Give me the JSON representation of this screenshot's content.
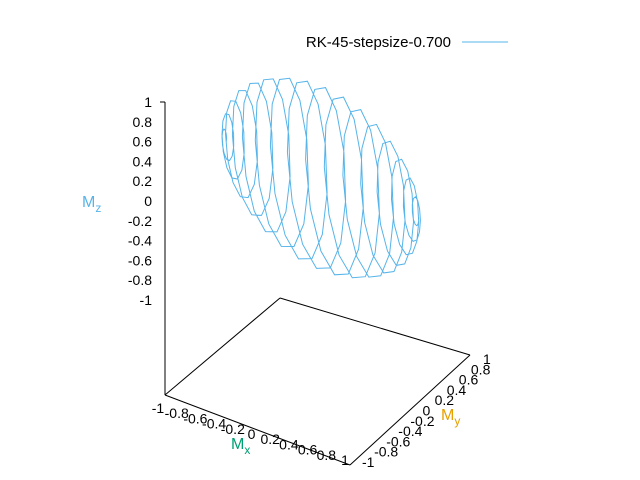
{
  "chart_data": {
    "type": "line",
    "projection": "3d",
    "title": "",
    "series": [
      {
        "name": "RK-45-stepsize-0.700",
        "color": "#56b4e9"
      }
    ],
    "axes": {
      "x": {
        "label": "M",
        "subscript": "x",
        "color": "#009e73",
        "range": [
          -1,
          1
        ],
        "ticks": [
          "-1",
          "-0.8",
          "-0.6",
          "-0.4",
          "-0.2",
          "0",
          "0.2",
          "0.4",
          "0.6",
          "0.8",
          "1"
        ]
      },
      "y": {
        "label": "M",
        "subscript": "y",
        "color": "#e69f00",
        "range": [
          -1,
          1
        ],
        "ticks": [
          "-1",
          "-0.8",
          "-0.6",
          "-0.4",
          "-0.2",
          "0",
          "0.2",
          "0.4",
          "0.6",
          "0.8",
          "1"
        ]
      },
      "z": {
        "label": "M",
        "subscript": "z",
        "color": "#56b4e9",
        "range": [
          -1,
          1
        ],
        "ticks": [
          "1",
          "0.8",
          "0.6",
          "0.4",
          "0.2",
          "0",
          "-0.2",
          "-0.4",
          "-0.6",
          "-0.8",
          "-1"
        ]
      }
    },
    "trajectory": {
      "surface": "unit sphere",
      "turns": 16,
      "polygon_sides": 12
    },
    "legend_position": "top-right",
    "grid": false
  }
}
